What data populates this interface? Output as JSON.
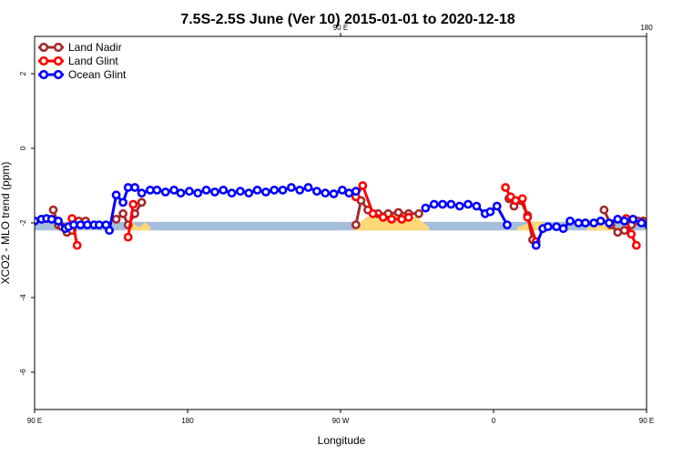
{
  "chart_data": {
    "type": "line",
    "title": "7.5S-2.5S June (Ver 10)   2015-01-01 to 2020-12-18",
    "xlabel": "Longitude",
    "ylabel": "XCO2 - MLO trend (ppm)",
    "xlim": [
      90,
      450
    ],
    "ylim": [
      -7,
      3
    ],
    "x_ticks": [
      {
        "value": 90,
        "label": "90 E"
      },
      {
        "value": 180,
        "label": "180"
      },
      {
        "value": 270,
        "label": "90 W"
      },
      {
        "value": 360,
        "label": "0"
      },
      {
        "value": 450,
        "label": "90 E"
      }
    ],
    "x_ticks_top": [
      {
        "value": 270,
        "label": "90 E"
      },
      {
        "value": 450,
        "label": "180"
      }
    ],
    "y_ticks": [
      {
        "value": 2,
        "label": "2"
      },
      {
        "value": 0,
        "label": "0"
      },
      {
        "value": -2,
        "label": "-2"
      },
      {
        "value": -4,
        "label": "-4"
      },
      {
        "value": -6,
        "label": "-6"
      }
    ],
    "grid": false,
    "legend_position": "top-left",
    "band": {
      "y_low": -2.2,
      "y_high": -1.97,
      "color": "#a7bedb"
    },
    "land_fill": {
      "color": "#ffd878",
      "regions": [
        {
          "x": [
            144,
            147,
            149,
            152,
            155,
            158
          ],
          "y": [
            -2.05,
            -1.92,
            -2.05,
            -2.12,
            -1.98,
            -2.1
          ]
        },
        {
          "x": [
            278,
            285,
            295,
            305,
            315,
            322
          ],
          "y": [
            -2.12,
            -1.85,
            -1.75,
            -1.78,
            -1.85,
            -2.12
          ]
        },
        {
          "x": [
            374,
            381,
            386,
            392
          ],
          "y": [
            -2.12,
            -2.0,
            -1.95,
            -2.05
          ]
        },
        {
          "x": [
            415,
            420,
            427,
            432
          ],
          "y": [
            -2.12,
            -2.08,
            -2.0,
            -2.1
          ]
        },
        {
          "x": [
            459,
            462,
            465,
            468
          ],
          "y": [
            -2.05,
            -1.92,
            -2.05,
            -2.12
          ]
        }
      ]
    },
    "series": [
      {
        "name": "Land Nadir",
        "color": "#a52a2a",
        "segments": [
          {
            "x": [
              101,
              104,
              106,
              109,
              112,
              116,
              120
            ],
            "y": [
              -1.65,
              -2.05,
              -2.1,
              -2.25,
              -2.2,
              -1.95,
              -1.95
            ]
          },
          {
            "x": [
              138,
              142,
              145,
              149,
              153
            ],
            "y": [
              -1.9,
              -1.75,
              -2.05,
              -1.75,
              -1.45
            ]
          },
          {
            "x": [
              279,
              282,
              286,
              292,
              298,
              304,
              310,
              316
            ],
            "y": [
              -2.05,
              -1.4,
              -1.65,
              -1.75,
              -1.75,
              -1.72,
              -1.75,
              -1.75
            ]
          },
          {
            "x": [
              369,
              372,
              376,
              380,
              383,
              385
            ],
            "y": [
              -1.35,
              -1.55,
              -1.4,
              -1.8,
              -2.45,
              -2.6
            ]
          },
          {
            "x": [
              425,
              429,
              433,
              437,
              441,
              445,
              448
            ],
            "y": [
              -1.65,
              -2.05,
              -2.25,
              -2.2,
              -2.05,
              -1.95,
              -1.95
            ]
          },
          {
            "x": [
              462,
              466,
              469,
              473,
              476
            ],
            "y": [
              -1.9,
              -1.75,
              -2.05,
              -1.75,
              -1.55
            ]
          }
        ]
      },
      {
        "name": "Land Glint",
        "color": "#ff0000",
        "segments": [
          {
            "x": [
              112,
              115
            ],
            "y": [
              -1.88,
              -2.6
            ]
          },
          {
            "x": [
              145,
              148
            ],
            "y": [
              -2.38,
              -1.5
            ]
          },
          {
            "x": [
              279,
              283,
              289,
              295,
              300,
              306,
              310
            ],
            "y": [
              -1.3,
              -1.0,
              -1.75,
              -1.85,
              -1.9,
              -1.9,
              -1.85
            ]
          },
          {
            "x": [
              367,
              370,
              373,
              377,
              380,
              385
            ],
            "y": [
              -1.05,
              -1.3,
              -1.4,
              -1.35,
              -1.85,
              -2.5
            ]
          },
          {
            "x": [
              438,
              441,
              444
            ],
            "y": [
              -1.88,
              -2.3,
              -2.6
            ]
          },
          {
            "x": [
              468,
              472
            ],
            "y": [
              -2.38,
              -1.5
            ]
          }
        ]
      },
      {
        "name": "Ocean Glint",
        "color": "#0000ff",
        "segments": [
          {
            "x": [
              90,
              94,
              97,
              100,
              104,
              108,
              110,
              113,
              117,
              121,
              125,
              128,
              132,
              134,
              138,
              142,
              145,
              149,
              153,
              158,
              162,
              167,
              172,
              176,
              181,
              186,
              191,
              196,
              201,
              206,
              211,
              216,
              221,
              226,
              231,
              236,
              241,
              246,
              251,
              256,
              261,
              266,
              271,
              275,
              279
            ],
            "y": [
              -1.95,
              -1.9,
              -1.88,
              -1.9,
              -1.95,
              -2.15,
              -2.1,
              -2.05,
              -2.05,
              -2.05,
              -2.05,
              -2.05,
              -2.05,
              -2.2,
              -1.25,
              -1.45,
              -1.05,
              -1.05,
              -1.2,
              -1.12,
              -1.12,
              -1.17,
              -1.12,
              -1.2,
              -1.15,
              -1.2,
              -1.12,
              -1.17,
              -1.12,
              -1.2,
              -1.15,
              -1.2,
              -1.12,
              -1.17,
              -1.12,
              -1.12,
              -1.05,
              -1.12,
              -1.05,
              -1.15,
              -1.2,
              -1.22,
              -1.12,
              -1.2,
              -1.15
            ]
          },
          {
            "x": [
              320,
              325,
              330,
              335,
              340,
              345,
              350,
              355,
              358,
              362,
              368
            ],
            "y": [
              -1.6,
              -1.5,
              -1.5,
              -1.5,
              -1.55,
              -1.5,
              -1.55,
              -1.75,
              -1.7,
              -1.55,
              -2.05
            ]
          },
          {
            "x": [
              385,
              389,
              392,
              397,
              401,
              405,
              410,
              414,
              419,
              423,
              428,
              433,
              437,
              442,
              447,
              451,
              455,
              458,
              462,
              464,
              469,
              473,
              478,
              482,
              487,
              491,
              496,
              501,
              506
            ],
            "y": [
              -2.6,
              -2.15,
              -2.1,
              -2.1,
              -2.15,
              -1.95,
              -2.0,
              -2.0,
              -2.0,
              -1.95,
              -2.0,
              -1.9,
              -1.95,
              -1.9,
              -2.0,
              -2.05,
              -2.1,
              -2.05,
              -2.2,
              -1.25,
              -1.45,
              -1.05,
              -1.2,
              -1.12,
              -1.12,
              -1.17,
              -1.12,
              -1.2,
              -1.15
            ]
          }
        ]
      }
    ]
  }
}
